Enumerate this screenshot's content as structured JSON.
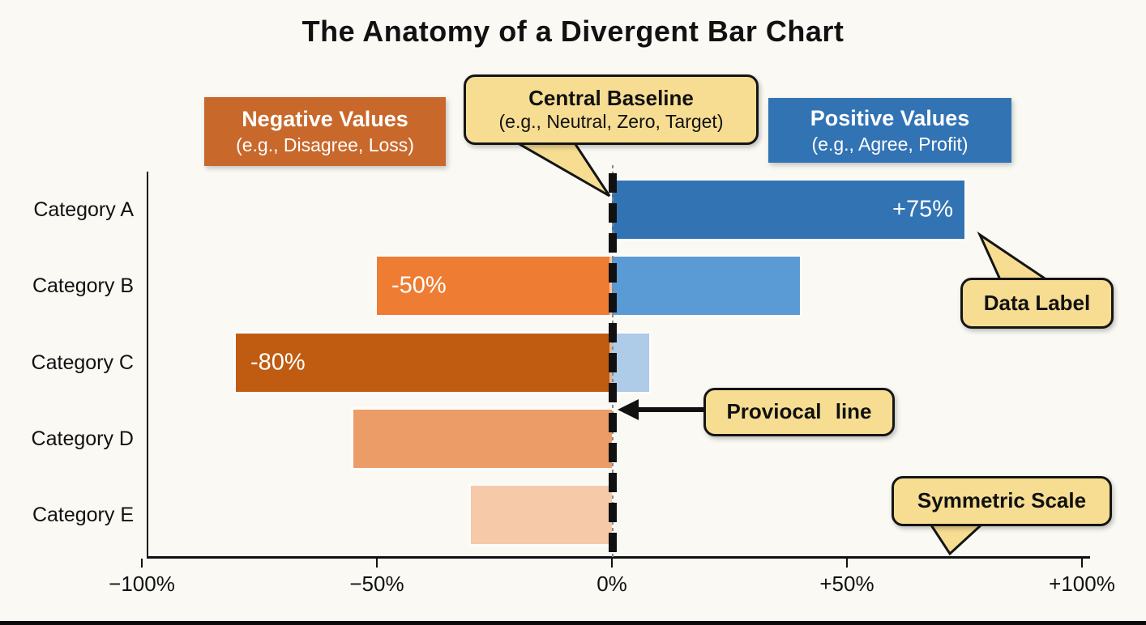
{
  "title": "The Anatomy of a Divergent Bar Chart",
  "colors": {
    "background": "#FAF9F4",
    "negative_header_bg": "#C8682B",
    "positive_header_bg": "#3273B4",
    "callout_bg": "#F7DD92",
    "callout_border": "#151515",
    "axis": "#111111",
    "baseline": "#111111"
  },
  "headers": {
    "negative": {
      "title": "Negative Values",
      "subtitle": "(e.g., Disagree, Loss)"
    },
    "positive": {
      "title": "Positive Values",
      "subtitle": "(e.g., Agree, Profit)"
    }
  },
  "annotations": {
    "central_baseline": {
      "title": "Central Baseline",
      "subtitle": "(e.g., Neutral, Zero, Target)"
    },
    "data_label": {
      "text": "Data Label"
    },
    "pivotal_line": {
      "text": "Proviocal line"
    },
    "symmetric_scale": {
      "text": "Symmetric Scale"
    }
  },
  "chart_data": {
    "type": "bar",
    "orientation": "horizontal",
    "title": "The Anatomy of a Divergent Bar Chart",
    "categories": [
      "Category A",
      "Category B",
      "Category C",
      "Category D",
      "Category E"
    ],
    "series": [
      {
        "name": "Negative",
        "values": [
          0,
          -50,
          -80,
          -55,
          -30
        ]
      },
      {
        "name": "Positive",
        "values": [
          75,
          40,
          8,
          0,
          0
        ]
      }
    ],
    "bars": [
      {
        "category": "Category A",
        "segments": [
          {
            "value": 75,
            "color": "#3273B4",
            "label": "+75%",
            "label_side": "right"
          }
        ]
      },
      {
        "category": "Category B",
        "segments": [
          {
            "value": -50,
            "color": "#EE7D33",
            "label": "-50%",
            "label_side": "left"
          },
          {
            "value": 40,
            "color": "#5B9BD5"
          }
        ]
      },
      {
        "category": "Category C",
        "segments": [
          {
            "value": -80,
            "color": "#C05C12",
            "label": "-80%",
            "label_side": "left"
          },
          {
            "value": 8,
            "color": "#AECBE8"
          }
        ]
      },
      {
        "category": "Category D",
        "segments": [
          {
            "value": -55,
            "color": "#EC9C67"
          }
        ]
      },
      {
        "category": "Category E",
        "segments": [
          {
            "value": -30,
            "color": "#F6C9A8"
          }
        ]
      }
    ],
    "x_ticks": [
      {
        "label": "−100%",
        "value": -100
      },
      {
        "label": "−50%",
        "value": -50
      },
      {
        "label": "0%",
        "value": 0
      },
      {
        "label": "+50%",
        "value": 50
      },
      {
        "label": "+100%",
        "value": 100
      }
    ],
    "xlim": [
      -100,
      100
    ],
    "baseline": {
      "value": 0,
      "style": "dashed"
    },
    "grid": false,
    "legend": false
  }
}
